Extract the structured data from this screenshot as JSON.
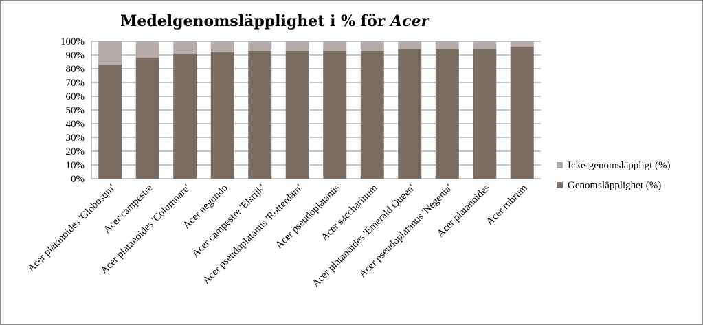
{
  "chart_data": {
    "type": "bar",
    "stacked": true,
    "percent_stacked": true,
    "title": "Medelgenomsläpplighet i % för ",
    "title_emphasis": "Acer",
    "categories": [
      "Acer platanoides 'Globosum'",
      "Acer campestre",
      "Acer platanoides 'Columnare'",
      "Acer negundo",
      "Acer campestre 'Elsrijk'",
      "Acer pseudoplatanus 'Rotterdam'",
      "Acer pseudoplatanus",
      "Acer saccharinum",
      "Acer platanoides 'Emerald Queen'",
      "Acer pseudoplatanus 'Negenia'",
      "Acer platanoides",
      "Acer rubrum"
    ],
    "series": [
      {
        "name": "Genomsläpplighet (%)",
        "color": "#7b6d61",
        "values": [
          83,
          88,
          91,
          92,
          93,
          93,
          93,
          93,
          94,
          94,
          94,
          96
        ]
      },
      {
        "name": "Icke-genomsläppligt (%)",
        "color": "#b3a9a6",
        "values": [
          17,
          12,
          9,
          8,
          7,
          7,
          7,
          7,
          6,
          6,
          6,
          4
        ]
      }
    ],
    "y_ticks": [
      "0%",
      "10%",
      "20%",
      "30%",
      "40%",
      "50%",
      "60%",
      "70%",
      "80%",
      "90%",
      "100%"
    ],
    "ylim": [
      0,
      100
    ],
    "grid": true,
    "legend_position": "right"
  }
}
